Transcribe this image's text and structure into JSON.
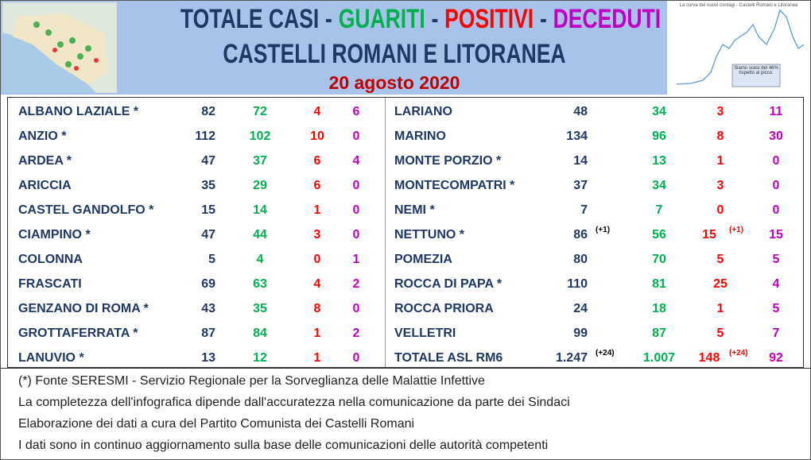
{
  "header": {
    "title_parts": [
      "TOTALE CASI",
      "GUARITI",
      "POSITIVI",
      "DECEDUTI"
    ],
    "separator": "-",
    "subtitle": "CASTELLI ROMANI E LITORANEA",
    "date": "20 agosto 2020",
    "thumbnail_title": "La curva dei nuovi contagi - Castelli Romani e Litoranea",
    "thumbnail_note": "Siamo scesi del 46% rispetto al picco."
  },
  "table": {
    "left": [
      {
        "name": "ALBANO LAZIALE *",
        "totale": 82,
        "guariti": 72,
        "positivi": 4,
        "deceduti": 6
      },
      {
        "name": "ANZIO *",
        "totale": 112,
        "guariti": 102,
        "positivi": 10,
        "deceduti": 0
      },
      {
        "name": "ARDEA *",
        "totale": 47,
        "guariti": 37,
        "positivi": 6,
        "deceduti": 4
      },
      {
        "name": "ARICCIA",
        "totale": 35,
        "guariti": 29,
        "positivi": 6,
        "deceduti": 0
      },
      {
        "name": "CASTEL GANDOLFO *",
        "totale": 15,
        "guariti": 14,
        "positivi": 1,
        "deceduti": 0
      },
      {
        "name": "CIAMPINO *",
        "totale": 47,
        "guariti": 44,
        "positivi": 3,
        "deceduti": 0
      },
      {
        "name": "COLONNA",
        "totale": 5,
        "guariti": 4,
        "positivi": 0,
        "deceduti": 1
      },
      {
        "name": "FRASCATI",
        "totale": 69,
        "guariti": 63,
        "positivi": 4,
        "deceduti": 2
      },
      {
        "name": "GENZANO DI ROMA *",
        "totale": 43,
        "guariti": 35,
        "positivi": 8,
        "deceduti": 0
      },
      {
        "name": "GROTTAFERRATA *",
        "totale": 87,
        "guariti": 84,
        "positivi": 1,
        "deceduti": 2
      },
      {
        "name": "LANUVIO *",
        "totale": 13,
        "guariti": 12,
        "positivi": 1,
        "deceduti": 0
      }
    ],
    "right": [
      {
        "name": "LARIANO",
        "totale": 48,
        "guariti": 34,
        "positivi": 3,
        "deceduti": 11
      },
      {
        "name": "MARINO",
        "totale": 134,
        "guariti": 96,
        "positivi": 8,
        "deceduti": 30
      },
      {
        "name": "MONTE PORZIO *",
        "totale": 14,
        "guariti": 13,
        "positivi": 1,
        "deceduti": 0
      },
      {
        "name": "MONTECOMPATRI *",
        "totale": 37,
        "guariti": 34,
        "positivi": 3,
        "deceduti": 0
      },
      {
        "name": "NEMI *",
        "totale": 7,
        "guariti": 7,
        "positivi": 0,
        "deceduti": 0
      },
      {
        "name": "NETTUNO *",
        "totale": 86,
        "totale_delta": "(+1)",
        "guariti": 56,
        "positivi": 15,
        "positivi_delta": "(+1)",
        "deceduti": 15
      },
      {
        "name": "POMEZIA",
        "totale": 80,
        "guariti": 70,
        "positivi": 5,
        "deceduti": 5
      },
      {
        "name": "ROCCA DI PAPA *",
        "totale": 110,
        "guariti": 81,
        "positivi": 25,
        "deceduti": 4
      },
      {
        "name": "ROCCA PRIORA",
        "totale": 24,
        "guariti": 18,
        "positivi": 1,
        "deceduti": 5
      },
      {
        "name": "VELLETRI",
        "totale": 99,
        "guariti": 87,
        "positivi": 5,
        "deceduti": 7
      },
      {
        "name": "TOTALE ASL RM6",
        "totale": "1.247",
        "totale_delta": "(+24)",
        "guariti": "1.007",
        "positivi": 148,
        "positivi_delta": "(+24)",
        "deceduti": 92
      }
    ]
  },
  "footer": [
    "(*) Fonte SERESMI - Servizio Regionale per la Sorveglianza delle Malattie Infettive",
    "La completezza dell'infografica dipende dall'accuratezza nella comunicazione da parte dei Sindaci",
    "Elaborazione dei dati a cura del Partito Comunista dei Castelli Romani",
    "I dati sono in continuo aggiornamento sulla base delle comunicazioni delle autorità competenti"
  ]
}
